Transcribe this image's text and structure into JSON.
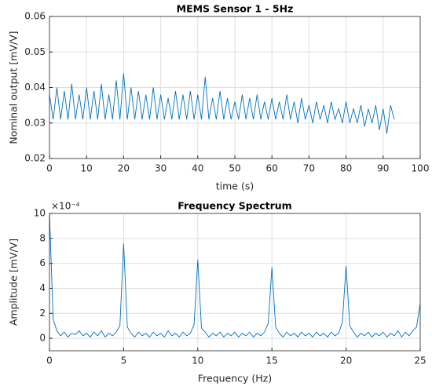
{
  "chart_data": [
    {
      "type": "line",
      "title": "MEMS Sensor 1 - 5Hz",
      "xlabel": "time (s)",
      "ylabel": "Nominal output [mV/V]",
      "color": "#0072bd",
      "grid": true,
      "xlim": [
        0,
        100
      ],
      "xticks": [
        0,
        10,
        20,
        30,
        40,
        50,
        60,
        70,
        80,
        90,
        100
      ],
      "ylim": [
        0.02,
        0.06
      ],
      "yticks": [
        0.02,
        0.03,
        0.04,
        0.05,
        0.06
      ],
      "x": [
        0,
        1,
        2,
        3,
        4,
        5,
        6,
        7,
        8,
        9,
        10,
        11,
        12,
        13,
        14,
        15,
        16,
        17,
        18,
        19,
        20,
        21,
        22,
        23,
        24,
        25,
        26,
        27,
        28,
        29,
        30,
        31,
        32,
        33,
        34,
        35,
        36,
        37,
        38,
        39,
        40,
        41,
        42,
        43,
        44,
        45,
        46,
        47,
        48,
        49,
        50,
        51,
        52,
        53,
        54,
        55,
        56,
        57,
        58,
        59,
        60,
        61,
        62,
        63,
        64,
        65,
        66,
        67,
        68,
        69,
        70,
        71,
        72,
        73,
        74,
        75,
        76,
        77,
        78,
        79,
        80,
        81,
        82,
        83,
        84,
        85,
        86,
        87,
        88,
        89,
        90,
        91,
        92,
        93
      ],
      "values": [
        0.038,
        0.031,
        0.04,
        0.031,
        0.039,
        0.031,
        0.041,
        0.031,
        0.038,
        0.031,
        0.04,
        0.031,
        0.039,
        0.031,
        0.041,
        0.031,
        0.038,
        0.031,
        0.042,
        0.031,
        0.044,
        0.031,
        0.04,
        0.031,
        0.039,
        0.031,
        0.038,
        0.031,
        0.04,
        0.031,
        0.038,
        0.031,
        0.037,
        0.031,
        0.039,
        0.031,
        0.038,
        0.031,
        0.039,
        0.031,
        0.038,
        0.031,
        0.043,
        0.031,
        0.037,
        0.031,
        0.039,
        0.031,
        0.037,
        0.031,
        0.036,
        0.031,
        0.038,
        0.031,
        0.037,
        0.031,
        0.038,
        0.031,
        0.036,
        0.031,
        0.037,
        0.031,
        0.036,
        0.031,
        0.038,
        0.031,
        0.036,
        0.03,
        0.037,
        0.031,
        0.035,
        0.03,
        0.036,
        0.031,
        0.035,
        0.03,
        0.036,
        0.031,
        0.034,
        0.03,
        0.036,
        0.03,
        0.034,
        0.03,
        0.035,
        0.029,
        0.034,
        0.03,
        0.035,
        0.028,
        0.034,
        0.027,
        0.035,
        0.031
      ]
    },
    {
      "type": "line",
      "title": "Frequency Spectrum",
      "xlabel": "Frequency (Hz)",
      "ylabel": "Amplitude [mV/V]",
      "y_multiplier": "×10⁻⁴",
      "color": "#0072bd",
      "grid": true,
      "xlim": [
        0,
        25
      ],
      "xticks": [
        0,
        5,
        10,
        15,
        20,
        25
      ],
      "ylim": [
        -1,
        10
      ],
      "yticks": [
        0,
        2,
        4,
        6,
        8,
        10
      ],
      "x": [
        0,
        0.25,
        0.5,
        0.75,
        1,
        1.25,
        1.5,
        1.75,
        2,
        2.25,
        2.5,
        2.75,
        3,
        3.25,
        3.5,
        3.75,
        4,
        4.25,
        4.5,
        4.75,
        5,
        5.25,
        5.5,
        5.75,
        6,
        6.25,
        6.5,
        6.75,
        7,
        7.25,
        7.5,
        7.75,
        8,
        8.25,
        8.5,
        8.75,
        9,
        9.25,
        9.5,
        9.75,
        10,
        10.25,
        10.5,
        10.75,
        11,
        11.25,
        11.5,
        11.75,
        12,
        12.25,
        12.5,
        12.75,
        13,
        13.25,
        13.5,
        13.75,
        14,
        14.25,
        14.5,
        14.75,
        15,
        15.25,
        15.5,
        15.75,
        16,
        16.25,
        16.5,
        16.75,
        17,
        17.25,
        17.5,
        17.75,
        18,
        18.25,
        18.5,
        18.75,
        19,
        19.25,
        19.5,
        19.75,
        20,
        20.25,
        20.5,
        20.75,
        21,
        21.25,
        21.5,
        21.75,
        22,
        22.25,
        22.5,
        22.75,
        23,
        23.25,
        23.5,
        23.75,
        24,
        24.25,
        24.5,
        24.75,
        25
      ],
      "values": [
        10,
        1.5,
        0.6,
        0.2,
        0.5,
        0.1,
        0.4,
        0.3,
        0.6,
        0.2,
        0.4,
        0.1,
        0.5,
        0.2,
        0.6,
        0.1,
        0.4,
        0.2,
        0.5,
        1.0,
        7.6,
        0.9,
        0.4,
        0.1,
        0.5,
        0.2,
        0.4,
        0.1,
        0.5,
        0.2,
        0.4,
        0.1,
        0.6,
        0.2,
        0.4,
        0.1,
        0.5,
        0.2,
        0.4,
        1.1,
        6.3,
        0.8,
        0.5,
        0.1,
        0.4,
        0.2,
        0.5,
        0.1,
        0.4,
        0.2,
        0.5,
        0.1,
        0.4,
        0.2,
        0.5,
        0.1,
        0.4,
        0.2,
        0.5,
        1.2,
        5.7,
        0.9,
        0.4,
        0.1,
        0.5,
        0.2,
        0.4,
        0.1,
        0.5,
        0.2,
        0.4,
        0.1,
        0.5,
        0.2,
        0.4,
        0.1,
        0.5,
        0.2,
        0.4,
        1.3,
        5.8,
        1.0,
        0.5,
        0.1,
        0.4,
        0.2,
        0.5,
        0.1,
        0.4,
        0.2,
        0.5,
        0.1,
        0.4,
        0.2,
        0.6,
        0.1,
        0.5,
        0.2,
        0.6,
        0.9,
        2.8
      ]
    }
  ]
}
